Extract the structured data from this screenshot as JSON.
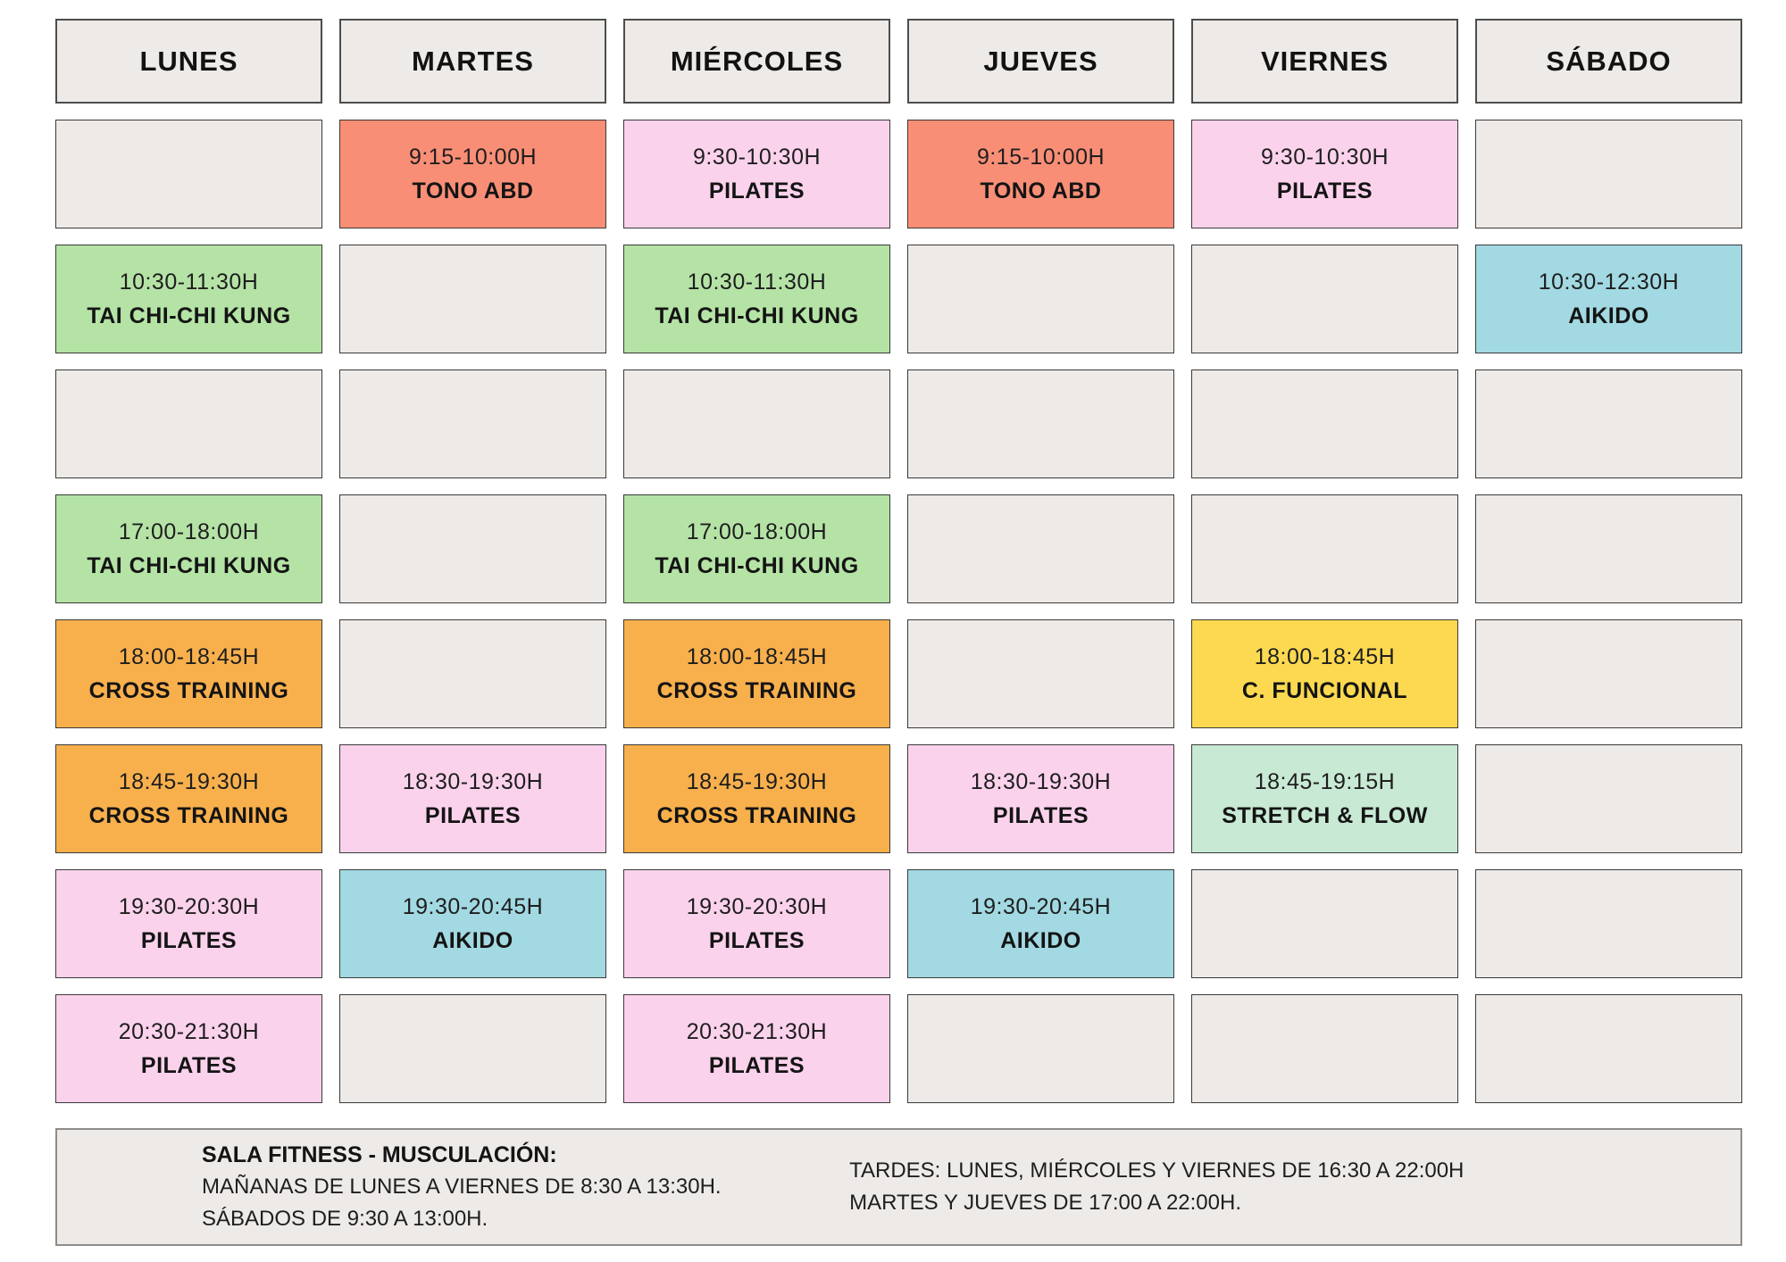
{
  "days": [
    "LUNES",
    "MARTES",
    "MIÉRCOLES",
    "JUEVES",
    "VIERNES",
    "SÁBADO"
  ],
  "colors": {
    "salmon": "#f98e76",
    "pink": "#fbd2ec",
    "green": "#b5e3a6",
    "blue": "#a2d9e2",
    "orange": "#f8b04d",
    "yellow": "#fcd950",
    "mint": "#c8e9d4",
    "empty": "#edeae8"
  },
  "rows": [
    [
      null,
      {
        "time": "9:15-10:00H",
        "activity": "TONO ABD",
        "color": "salmon"
      },
      {
        "time": "9:30-10:30H",
        "activity": "PILATES",
        "color": "pink"
      },
      {
        "time": "9:15-10:00H",
        "activity": "TONO ABD",
        "color": "salmon"
      },
      {
        "time": "9:30-10:30H",
        "activity": "PILATES",
        "color": "pink"
      },
      null
    ],
    [
      {
        "time": "10:30-11:30H",
        "activity": "TAI CHI-CHI KUNG",
        "color": "green"
      },
      null,
      {
        "time": "10:30-11:30H",
        "activity": "TAI CHI-CHI KUNG",
        "color": "green"
      },
      null,
      null,
      {
        "time": "10:30-12:30H",
        "activity": "AIKIDO",
        "color": "blue"
      }
    ],
    [
      null,
      null,
      null,
      null,
      null,
      null
    ],
    [
      {
        "time": "17:00-18:00H",
        "activity": "TAI CHI-CHI KUNG",
        "color": "green"
      },
      null,
      {
        "time": "17:00-18:00H",
        "activity": "TAI CHI-CHI KUNG",
        "color": "green"
      },
      null,
      null,
      null
    ],
    [
      {
        "time": "18:00-18:45H",
        "activity": "CROSS TRAINING",
        "color": "orange"
      },
      null,
      {
        "time": "18:00-18:45H",
        "activity": "CROSS TRAINING",
        "color": "orange"
      },
      null,
      {
        "time": "18:00-18:45H",
        "activity": "C. FUNCIONAL",
        "color": "yellow"
      },
      null
    ],
    [
      {
        "time": "18:45-19:30H",
        "activity": "CROSS TRAINING",
        "color": "orange"
      },
      {
        "time": "18:30-19:30H",
        "activity": "PILATES",
        "color": "pink"
      },
      {
        "time": "18:45-19:30H",
        "activity": "CROSS TRAINING",
        "color": "orange"
      },
      {
        "time": "18:30-19:30H",
        "activity": "PILATES",
        "color": "pink"
      },
      {
        "time": "18:45-19:15H",
        "activity": "STRETCH & FLOW",
        "color": "mint"
      },
      null
    ],
    [
      {
        "time": "19:30-20:30H",
        "activity": "PILATES",
        "color": "pink"
      },
      {
        "time": "19:30-20:45H",
        "activity": "AIKIDO",
        "color": "blue"
      },
      {
        "time": "19:30-20:30H",
        "activity": "PILATES",
        "color": "pink"
      },
      {
        "time": "19:30-20:45H",
        "activity": "AIKIDO",
        "color": "blue"
      },
      null,
      null
    ],
    [
      {
        "time": "20:30-21:30H",
        "activity": "PILATES",
        "color": "pink"
      },
      null,
      {
        "time": "20:30-21:30H",
        "activity": "PILATES",
        "color": "pink"
      },
      null,
      null,
      null
    ]
  ],
  "footer": {
    "left_title": "SALA FITNESS - MUSCULACIÓN:",
    "left_lines": [
      "MAÑANAS DE LUNES A VIERNES DE 8:30 A 13:30H.",
      "SÁBADOS DE 9:30 A 13:00H."
    ],
    "right_lines": [
      "TARDES: LUNES, MIÉRCOLES Y VIERNES DE 16:30 A 22:00H",
      "MARTES Y JUEVES DE 17:00 A 22:00H."
    ]
  }
}
